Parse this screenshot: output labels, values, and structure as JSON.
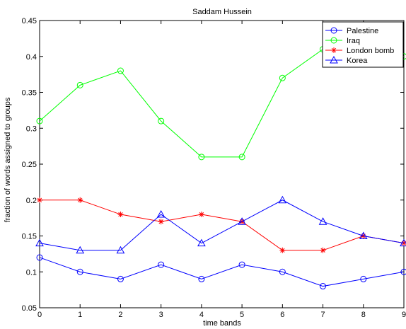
{
  "chart_data": {
    "type": "line",
    "title": "Saddam Hussein",
    "xlabel": "time bands",
    "ylabel": "fraction of words assigned to groups",
    "x": [
      0,
      1,
      2,
      3,
      4,
      5,
      6,
      7,
      8,
      9
    ],
    "xlim": [
      0,
      9
    ],
    "ylim": [
      0.05,
      0.45
    ],
    "xticks": [
      "0",
      "1",
      "2",
      "3",
      "4",
      "5",
      "6",
      "7",
      "8",
      "9"
    ],
    "yticks": [
      "0.05",
      "0.1",
      "0.15",
      "0.2",
      "0.25",
      "0.3",
      "0.35",
      "0.4",
      "0.45"
    ],
    "grid": false,
    "legend_position": "top-right",
    "series": [
      {
        "name": "Palestine",
        "color": "#0000ff",
        "marker": "circle",
        "values": [
          0.12,
          0.1,
          0.09,
          0.11,
          0.09,
          0.11,
          0.1,
          0.08,
          0.09,
          0.1
        ]
      },
      {
        "name": "Iraq",
        "color": "#00ff00",
        "marker": "circle",
        "values": [
          0.31,
          0.36,
          0.38,
          0.31,
          0.26,
          0.26,
          0.37,
          0.41,
          0.41,
          0.4
        ]
      },
      {
        "name": "London bomb",
        "color": "#ff0000",
        "marker": "star",
        "values": [
          0.2,
          0.2,
          0.18,
          0.17,
          0.18,
          0.17,
          0.13,
          0.13,
          0.15,
          0.14
        ]
      },
      {
        "name": "Korea",
        "color": "#0000ff",
        "marker": "triangle",
        "values": [
          0.14,
          0.13,
          0.13,
          0.18,
          0.14,
          0.17,
          0.2,
          0.17,
          0.15,
          0.14
        ]
      }
    ]
  }
}
